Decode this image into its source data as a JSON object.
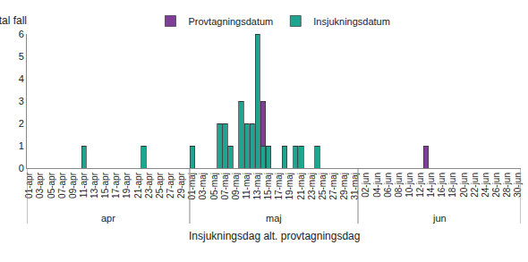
{
  "chart_data": {
    "type": "bar",
    "stacked": true,
    "y_label": "Antal fall",
    "x_label": "Insjukningsdag alt. provtagningsdag",
    "categories": [
      "01-apr",
      null,
      "03-apr",
      null,
      "05-apr",
      null,
      "07-apr",
      null,
      "09-apr",
      null,
      "11-apr",
      null,
      "13-apr",
      null,
      "15-apr",
      null,
      "17-apr",
      null,
      "19-apr",
      null,
      "21-apr",
      null,
      "23-apr",
      null,
      "25-apr",
      null,
      "27-apr",
      null,
      "29-apr",
      null,
      "01-maj",
      null,
      "03-maj",
      null,
      "05-maj",
      null,
      "07-maj",
      null,
      "09-maj",
      null,
      "11-maj",
      null,
      "13-maj",
      null,
      "15-maj",
      null,
      "17-maj",
      null,
      "19-maj",
      null,
      "21-maj",
      null,
      "23-maj",
      null,
      "25-maj",
      null,
      "27-maj",
      null,
      "29-maj",
      null,
      "31-maj",
      null,
      "02-jun",
      null,
      "04-jun",
      null,
      "06-jun",
      null,
      "08-jun",
      null,
      "10-jun",
      null,
      "12-jun",
      null,
      "14-jun",
      null,
      "16-jun",
      null,
      "18-jun",
      null,
      "20-jun",
      null,
      "22-jun",
      null,
      "24-jun",
      null,
      "26-jun",
      null,
      "28-jun",
      null,
      "30-jun"
    ],
    "groups": [
      {
        "label": "apr",
        "count": 30
      },
      {
        "label": "maj",
        "count": 31
      },
      {
        "label": "jun",
        "count": 30
      }
    ],
    "series": [
      {
        "name": "Insjukningsdatum",
        "color": "#1ea58f",
        "values": [
          0,
          0,
          0,
          0,
          0,
          0,
          0,
          0,
          0,
          0,
          1,
          0,
          0,
          0,
          0,
          0,
          0,
          0,
          0,
          0,
          0,
          1,
          0,
          0,
          0,
          0,
          0,
          0,
          0,
          0,
          1,
          0,
          0,
          0,
          0,
          2,
          2,
          1,
          0,
          3,
          2,
          2,
          6,
          1,
          1,
          0,
          0,
          1,
          0,
          1,
          1,
          0,
          0,
          1,
          0,
          0,
          0,
          0,
          0,
          0,
          0,
          0,
          0,
          0,
          0,
          0,
          0,
          0,
          0,
          0,
          0,
          0,
          0,
          0,
          0,
          0,
          0,
          0,
          0,
          0,
          0,
          0,
          0,
          0,
          0,
          0,
          0,
          0,
          0,
          0,
          0
        ]
      },
      {
        "name": "Provtagningsdatum",
        "color": "#7f3f98",
        "values": [
          0,
          0,
          0,
          0,
          0,
          0,
          0,
          0,
          0,
          0,
          0,
          0,
          0,
          0,
          0,
          0,
          0,
          0,
          0,
          0,
          0,
          0,
          0,
          0,
          0,
          0,
          0,
          0,
          0,
          0,
          0,
          0,
          0,
          0,
          0,
          0,
          0,
          0,
          0,
          0,
          0,
          0,
          0,
          2,
          0,
          0,
          0,
          0,
          0,
          0,
          0,
          0,
          0,
          0,
          0,
          0,
          0,
          0,
          0,
          0,
          0,
          0,
          0,
          0,
          0,
          0,
          0,
          0,
          0,
          0,
          0,
          0,
          0,
          1,
          0,
          0,
          0,
          0,
          0,
          0,
          0,
          0,
          0,
          0,
          0,
          0,
          0,
          0,
          0,
          0,
          0
        ]
      }
    ],
    "ylim": [
      0,
      6
    ],
    "yticks": [
      0,
      1,
      2,
      3,
      4,
      5,
      6
    ],
    "grid": false,
    "legend": "top"
  }
}
